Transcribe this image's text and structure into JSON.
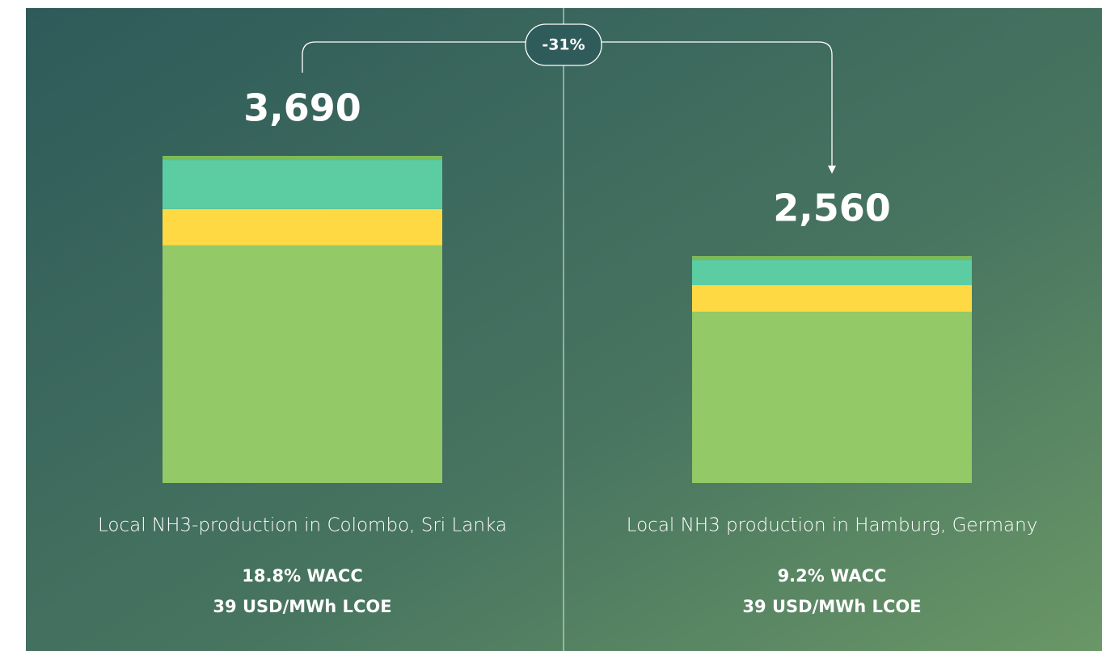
{
  "chart_data": {
    "type": "stacked_bar",
    "categories": [
      "Local NH3-production in Colombo, Sri Lanka",
      "Local NH3 production in Hamburg, Germany"
    ],
    "category_notes": [
      [
        "18.8% WACC",
        "39 USD/MWh LCOE"
      ],
      [
        "9.2% WACC",
        "39 USD/MWh LCOE"
      ]
    ],
    "series": [
      {
        "color": "#93c966",
        "values": [
          2680,
          1932
        ]
      },
      {
        "color": "#ffd944",
        "values": [
          410,
          300
        ]
      },
      {
        "color": "#5ccda3",
        "values": [
          554,
          282
        ]
      },
      {
        "color": "#7bbb58",
        "values": [
          46,
          46
        ]
      }
    ],
    "totals": [
      3690,
      2560
    ],
    "total_labels": [
      "3,690",
      "2,560"
    ],
    "annotation": "-31%"
  }
}
